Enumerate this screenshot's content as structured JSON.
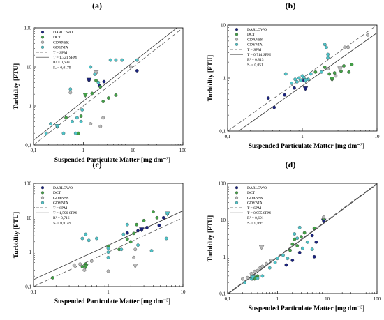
{
  "colors": {
    "DARLOWO": "#1a237e",
    "DCT": "#43a047",
    "GDANSK": "#b8b8b8",
    "GDYNIA": "#4fc3c8"
  },
  "chart_data": [
    {
      "type": "scatter",
      "title": "(a)",
      "xlabel": "Suspended Particulate Matter [mg dm⁻³]",
      "ylabel": "Turbidity [FTU]",
      "xscale": "log",
      "yscale": "log",
      "xlim": [
        0.1,
        100
      ],
      "ylim": [
        0.1,
        100
      ],
      "xticks": [
        "0,1",
        "1",
        "10",
        "100"
      ],
      "yticks": [
        "0,1",
        "1",
        "10",
        "100"
      ],
      "legend_position": "top-left",
      "legend": [
        "DARLOWO",
        "DCT",
        "GDANSK",
        "GDYNIA",
        "T = SPM",
        "T = 1,321 SPM",
        "R² = 0,699",
        "Sₐ = 0,0179"
      ],
      "series": [
        {
          "name": "DARLOWO",
          "points": [
            [
              1.3,
              4.6
            ],
            [
              2.1,
              3.3
            ],
            [
              2.6,
              4.2
            ],
            [
              12,
              8
            ]
          ],
          "triangles": [
            [
              1.3,
              4.6
            ]
          ]
        },
        {
          "name": "DCT",
          "points": [
            [
              0.45,
              0.5
            ],
            [
              0.8,
              0.2
            ],
            [
              0.9,
              0.55
            ],
            [
              1.1,
              1.9
            ],
            [
              1.5,
              2.1
            ],
            [
              1.8,
              4.5
            ],
            [
              2.2,
              3.1
            ],
            [
              2.5,
              1.3
            ],
            [
              3.2,
              1.6
            ],
            [
              4.5,
              1.9
            ]
          ],
          "triangles": [
            [
              1.1,
              1.9
            ]
          ]
        },
        {
          "name": "GDANSK",
          "points": [
            [
              0.55,
              2.2
            ],
            [
              1.4,
              0.35
            ],
            [
              1.8,
              7.1
            ],
            [
              2.2,
              0.3
            ],
            [
              2.5,
              0.5
            ],
            [
              9,
              10
            ]
          ],
          "triangles": [
            [
              1.8,
              7.1
            ]
          ]
        },
        {
          "name": "GDYNIA",
          "points": [
            [
              0.18,
              0.2
            ],
            [
              0.22,
              0.35
            ],
            [
              0.3,
              0.3
            ],
            [
              0.4,
              0.2
            ],
            [
              0.55,
              2.7
            ],
            [
              0.6,
              0.4
            ],
            [
              0.7,
              0.2
            ],
            [
              0.75,
              0.5
            ],
            [
              0.9,
              0.4
            ],
            [
              0.95,
              0.8
            ],
            [
              1.4,
              10
            ],
            [
              1.7,
              6.5
            ],
            [
              2,
              4
            ],
            [
              3.5,
              15
            ],
            [
              4.5,
              15
            ],
            [
              6,
              15
            ],
            [
              12,
              15
            ]
          ],
          "triangles": [
            [
              0.3,
              0.3
            ]
          ]
        }
      ],
      "lines": [
        {
          "name": "T = SPM",
          "slope": 1.0,
          "style": "dashed"
        },
        {
          "name": "T = 1,321 SPM",
          "slope": 1.321,
          "style": "solid"
        }
      ]
    },
    {
      "type": "scatter",
      "title": "(b)",
      "xlabel": "Suspended Particulate Matter [mg dm⁻³]",
      "ylabel": "Turbidity [FTU]",
      "xscale": "log",
      "yscale": "log",
      "xlim": [
        0.1,
        10
      ],
      "ylim": [
        0.1,
        10
      ],
      "xticks": [
        "0,1",
        "1",
        "10"
      ],
      "yticks": [
        "0,1",
        "1",
        "10"
      ],
      "legend_position": "top-left",
      "legend": [
        "DARLOWO",
        "DCT",
        "GDANSK",
        "GDYNIA",
        "T = SPM",
        "T = 0,714 SPM",
        "R² = 0,813",
        "Sₐ = 0,051"
      ],
      "series": [
        {
          "name": "DARLOWO",
          "points": [
            [
              0.35,
              0.42
            ],
            [
              0.42,
              0.28
            ],
            [
              0.58,
              0.48
            ],
            [
              0.78,
              0.65
            ],
            [
              1.1,
              0.63
            ],
            [
              1.05,
              0.9
            ]
          ],
          "triangles": [
            [
              1.1,
              0.63
            ]
          ]
        },
        {
          "name": "DCT",
          "points": [
            [
              1.5,
              1.3
            ],
            [
              2,
              1.6
            ],
            [
              2.3,
              1.2
            ],
            [
              2.5,
              0.95
            ],
            [
              2.7,
              1.25
            ],
            [
              3.3,
              1.35
            ],
            [
              3.6,
              1.7
            ],
            [
              4.2,
              1.3
            ],
            [
              4.6,
              1.8
            ]
          ],
          "triangles": [
            [
              2.5,
              0.95
            ]
          ]
        },
        {
          "name": "GDANSK",
          "points": [
            [
              2.2,
              1.5
            ],
            [
              2.8,
              1.1
            ],
            [
              3.2,
              1.5
            ],
            [
              3.7,
              3.8
            ],
            [
              4.1,
              3.8
            ],
            [
              7.5,
              6.5
            ]
          ],
          "triangles": [
            [
              3.2,
              1.5
            ]
          ]
        },
        {
          "name": "GDYNIA",
          "points": [
            [
              0.6,
              1.2
            ],
            [
              0.72,
              0.8
            ],
            [
              0.8,
              0.95
            ],
            [
              0.85,
              0.85
            ],
            [
              0.9,
              1.0
            ],
            [
              0.95,
              0.9
            ],
            [
              1.0,
              1.1
            ],
            [
              1.05,
              1.0
            ],
            [
              1.1,
              0.9
            ],
            [
              1.2,
              0.95
            ],
            [
              1.3,
              1.2
            ],
            [
              1.8,
              1.3
            ],
            [
              2.0,
              4.3
            ],
            [
              2.1,
              3.8
            ],
            [
              2.2,
              2.8
            ],
            [
              2.2,
              2.4
            ]
          ],
          "triangles": [
            [
              1.1,
              0.9
            ]
          ]
        }
      ],
      "lines": [
        {
          "name": "T = SPM",
          "slope": 1.0,
          "style": "dashed"
        },
        {
          "name": "T = 0,714 SPM",
          "slope": 0.714,
          "style": "solid"
        }
      ]
    },
    {
      "type": "scatter",
      "title": "(c)",
      "xlabel": "Suspended Particulate Matter [mg dm⁻³]",
      "ylabel": "Turbidity [FTU]",
      "xscale": "log",
      "yscale": "log",
      "xlim": [
        0.1,
        10
      ],
      "ylim": [
        0.1,
        100
      ],
      "xticks": [
        "0,1",
        "1",
        "10"
      ],
      "yticks": [
        "0,1",
        "1",
        "10",
        "100"
      ],
      "legend_position": "top-left",
      "legend": [
        "DARLOWO",
        "DCT",
        "GDANSK",
        "GDYNIA",
        "T = SPM",
        "T = 1,590 SPM",
        "R² = 0,716",
        "Sₐ = 0,0149"
      ],
      "series": [
        {
          "name": "DARLOWO",
          "points": [
            [
              1.8,
              3.6
            ],
            [
              2.5,
              4.2
            ],
            [
              2.8,
              4.5
            ],
            [
              3.3,
              5.2
            ],
            [
              4.8,
              6
            ],
            [
              5.5,
              10
            ]
          ],
          "triangles": [
            [
              2.8,
              4.5
            ]
          ]
        },
        {
          "name": "DCT",
          "points": [
            [
              0.18,
              0.18
            ],
            [
              0.45,
              0.38
            ],
            [
              0.5,
              0.45
            ],
            [
              1.0,
              1.5
            ],
            [
              1.4,
              1.2
            ],
            [
              1.8,
              2.4
            ],
            [
              2.0,
              2.0
            ],
            [
              2.2,
              3.5
            ],
            [
              2.4,
              6.3
            ],
            [
              3.0,
              8.3
            ],
            [
              4.0,
              15
            ],
            [
              4.5,
              10
            ]
          ],
          "triangles": [
            [
              0.5,
              0.38
            ]
          ]
        },
        {
          "name": "GDANSK",
          "points": [
            [
              0.35,
              0.42
            ],
            [
              0.42,
              0.45
            ],
            [
              0.48,
              0.3
            ],
            [
              0.6,
              0.55
            ],
            [
              1.0,
              0.28
            ],
            [
              2.2,
              0.7
            ],
            [
              2.3,
              1.2
            ]
          ],
          "triangles": [
            [
              2.3,
              0.4
            ]
          ]
        },
        {
          "name": "GDYNIA",
          "points": [
            [
              0.45,
              2.5
            ],
            [
              0.5,
              3.3
            ],
            [
              0.55,
              2.2
            ],
            [
              0.7,
              2.5
            ],
            [
              1.0,
              0.7
            ],
            [
              1.0,
              1.0
            ],
            [
              1.0,
              1.3
            ],
            [
              1.5,
              1.2
            ],
            [
              1.6,
              3.3
            ],
            [
              1.8,
              6.3
            ],
            [
              2.5,
              1.6
            ],
            [
              3.8,
              1.1
            ],
            [
              6.0,
              2.5
            ],
            [
              6.2,
              13
            ]
          ],
          "triangles": [
            [
              6.2,
              13
            ]
          ]
        }
      ],
      "lines": [
        {
          "name": "T = SPM",
          "slope": 1.0,
          "style": "dashed"
        },
        {
          "name": "T = 1,590 SPM",
          "slope": 1.59,
          "style": "solid"
        }
      ]
    },
    {
      "type": "scatter",
      "title": "(d)",
      "xlabel": "Suspended Particulate Matter [mg dm⁻³]",
      "ylabel": "Turbidity [FTU]",
      "xscale": "log",
      "yscale": "log",
      "xlim": [
        0.1,
        100
      ],
      "ylim": [
        0.1,
        100
      ],
      "xticks": [
        "0,1",
        "1",
        "10",
        "100"
      ],
      "yticks": [
        "0,1",
        "1",
        "10",
        "100"
      ],
      "legend_position": "top-left",
      "legend": [
        "DARLOWO",
        "DCT",
        "GDANSK",
        "GDYNIA",
        "T = SPM",
        "T = 0,955 SPM",
        "R² = 0,691",
        "Sₐ = 0,095"
      ],
      "series": [
        {
          "name": "DARLOWO",
          "points": [
            [
              1.5,
              0.6
            ],
            [
              2.0,
              0.8
            ],
            [
              2.8,
              1.3
            ],
            [
              5.0,
              3.8
            ],
            [
              5.5,
              1.0
            ],
            [
              6.0,
              2.5
            ],
            [
              8.5,
              9.5
            ]
          ],
          "triangles": [
            [
              8.5,
              9.5
            ]
          ]
        },
        {
          "name": "DCT",
          "points": [
            [
              0.32,
              0.25
            ],
            [
              0.4,
              0.3
            ],
            [
              1.8,
              1.5
            ],
            [
              2.0,
              2.2
            ],
            [
              2.2,
              3.0
            ],
            [
              2.5,
              2.0
            ],
            [
              3.0,
              3.5
            ],
            [
              3.5,
              4.5
            ],
            [
              5.5,
              6.0
            ],
            [
              8.5,
              11
            ]
          ],
          "triangles": [
            [
              0.35,
              0.26
            ]
          ]
        },
        {
          "name": "GDANSK",
          "points": [
            [
              0.2,
              0.25
            ],
            [
              0.25,
              0.27
            ],
            [
              0.3,
              0.35
            ],
            [
              0.35,
              0.4
            ],
            [
              0.4,
              0.42
            ],
            [
              0.45,
              0.5
            ],
            [
              0.5,
              0.55
            ],
            [
              0.6,
              0.65
            ],
            [
              0.75,
              0.8
            ],
            [
              8.5,
              12
            ]
          ],
          "triangles": [
            [
              0.48,
              1.8
            ]
          ]
        },
        {
          "name": "GDYNIA",
          "points": [
            [
              0.22,
              0.2
            ],
            [
              0.3,
              0.25
            ],
            [
              0.4,
              0.26
            ],
            [
              0.5,
              0.3
            ],
            [
              0.7,
              0.5
            ],
            [
              0.9,
              0.7
            ],
            [
              1.0,
              0.9
            ],
            [
              1.3,
              1.1
            ],
            [
              1.6,
              0.9
            ],
            [
              2.2,
              4.2
            ],
            [
              2.5,
              3.2
            ],
            [
              2.8,
              6.3
            ],
            [
              3.2,
              1.7
            ],
            [
              4.0,
              2.5
            ],
            [
              5.0,
              1.6
            ]
          ],
          "triangles": [
            [
              0.32,
              0.27
            ]
          ]
        }
      ],
      "lines": [
        {
          "name": "T = SPM",
          "slope": 1.0,
          "style": "dashed"
        },
        {
          "name": "T = 0,955 SPM",
          "slope": 0.955,
          "style": "solid"
        }
      ]
    }
  ]
}
